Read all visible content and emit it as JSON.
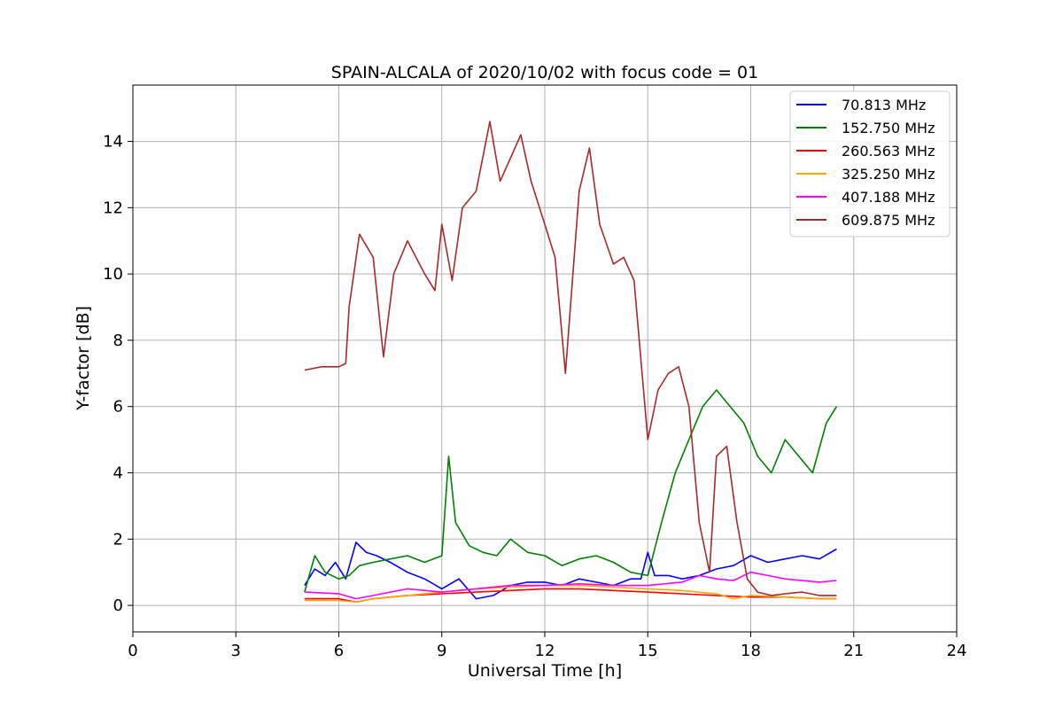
{
  "chart_data": {
    "type": "line",
    "title": "SPAIN-ALCALA of 2020/10/02 with focus code = 01",
    "xlabel": "Universal Time [h]",
    "ylabel": "Y-factor [dB]",
    "xlim": [
      0,
      24
    ],
    "ylim": [
      -0.8,
      15.7
    ],
    "xticks": [
      0,
      3,
      6,
      9,
      12,
      15,
      18,
      21,
      24
    ],
    "yticks": [
      0,
      2,
      4,
      6,
      8,
      10,
      12,
      14
    ],
    "grid": true,
    "legend_position": "top-right",
    "series": [
      {
        "name": " 70.813 MHz",
        "color": "#0000ff",
        "x": [
          5.0,
          5.3,
          5.6,
          5.9,
          6.2,
          6.5,
          6.8,
          7.1,
          7.5,
          8.0,
          8.5,
          9.0,
          9.5,
          10.0,
          10.5,
          11.0,
          11.5,
          12.0,
          12.5,
          13.0,
          13.5,
          14.0,
          14.5,
          14.8,
          15.0,
          15.2,
          15.6,
          16.0,
          16.5,
          17.0,
          17.5,
          18.0,
          18.5,
          19.0,
          19.5,
          20.0,
          20.5
        ],
        "y": [
          0.6,
          1.1,
          0.9,
          1.3,
          0.8,
          1.9,
          1.6,
          1.5,
          1.3,
          1.0,
          0.8,
          0.5,
          0.8,
          0.2,
          0.3,
          0.6,
          0.7,
          0.7,
          0.6,
          0.8,
          0.7,
          0.6,
          0.8,
          0.8,
          1.6,
          0.9,
          0.9,
          0.8,
          0.9,
          1.1,
          1.2,
          1.5,
          1.3,
          1.4,
          1.5,
          1.4,
          1.7
        ]
      },
      {
        "name": "152.750 MHz",
        "color": "#008000",
        "x": [
          5.0,
          5.3,
          5.6,
          6.0,
          6.3,
          6.6,
          7.0,
          7.5,
          8.0,
          8.5,
          9.0,
          9.2,
          9.4,
          9.8,
          10.2,
          10.6,
          11.0,
          11.5,
          12.0,
          12.5,
          13.0,
          13.5,
          14.0,
          14.5,
          15.0,
          15.4,
          15.8,
          16.2,
          16.6,
          17.0,
          17.4,
          17.8,
          18.2,
          18.6,
          19.0,
          19.4,
          19.8,
          20.2,
          20.5
        ],
        "y": [
          0.4,
          1.5,
          1.0,
          0.8,
          0.9,
          1.2,
          1.3,
          1.4,
          1.5,
          1.3,
          1.5,
          4.5,
          2.5,
          1.8,
          1.6,
          1.5,
          2.0,
          1.6,
          1.5,
          1.2,
          1.4,
          1.5,
          1.3,
          1.0,
          0.9,
          2.5,
          4.0,
          5.0,
          6.0,
          6.5,
          6.0,
          5.5,
          4.5,
          4.0,
          5.0,
          4.5,
          4.0,
          5.5,
          6.0
        ]
      },
      {
        "name": "260.563 MHz",
        "color": "#ff0000",
        "x": [
          5.0,
          6.0,
          6.5,
          7.0,
          8.0,
          9.0,
          10.0,
          11.0,
          12.0,
          13.0,
          14.0,
          15.0,
          16.0,
          17.0,
          18.0,
          19.0,
          20.0,
          20.5
        ],
        "y": [
          0.2,
          0.2,
          0.1,
          0.2,
          0.3,
          0.35,
          0.4,
          0.45,
          0.5,
          0.5,
          0.45,
          0.4,
          0.35,
          0.3,
          0.25,
          0.25,
          0.2,
          0.2
        ]
      },
      {
        "name": "325.250 MHz",
        "color": "#ffa500",
        "x": [
          5.0,
          6.0,
          6.5,
          7.0,
          8.0,
          9.0,
          10.0,
          11.0,
          12.0,
          13.0,
          14.0,
          15.0,
          16.0,
          17.0,
          17.5,
          18.0,
          19.0,
          20.0,
          20.5
        ],
        "y": [
          0.15,
          0.15,
          0.1,
          0.2,
          0.3,
          0.4,
          0.5,
          0.55,
          0.6,
          0.6,
          0.55,
          0.5,
          0.45,
          0.35,
          0.2,
          0.3,
          0.25,
          0.2,
          0.2
        ]
      },
      {
        "name": "407.188 MHz",
        "color": "#ff00ff",
        "x": [
          5.0,
          6.0,
          6.5,
          7.0,
          8.0,
          9.0,
          10.0,
          11.0,
          12.0,
          13.0,
          14.0,
          15.0,
          16.0,
          16.5,
          17.0,
          17.5,
          18.0,
          18.5,
          19.0,
          20.0,
          20.5
        ],
        "y": [
          0.4,
          0.35,
          0.2,
          0.3,
          0.5,
          0.4,
          0.5,
          0.6,
          0.6,
          0.65,
          0.6,
          0.6,
          0.7,
          0.9,
          0.8,
          0.75,
          1.0,
          0.9,
          0.8,
          0.7,
          0.75
        ]
      },
      {
        "name": "609.875 MHz",
        "color": "#a52a2a",
        "x": [
          5.0,
          5.5,
          6.0,
          6.2,
          6.3,
          6.6,
          7.0,
          7.3,
          7.6,
          8.0,
          8.5,
          8.8,
          9.0,
          9.3,
          9.6,
          10.0,
          10.4,
          10.7,
          11.0,
          11.3,
          11.6,
          12.0,
          12.3,
          12.6,
          13.0,
          13.3,
          13.6,
          14.0,
          14.3,
          14.6,
          15.0,
          15.3,
          15.6,
          15.9,
          16.2,
          16.5,
          16.8,
          17.0,
          17.3,
          17.6,
          17.9,
          18.2,
          18.6,
          19.0,
          19.5,
          20.0,
          20.5
        ],
        "y": [
          7.1,
          7.2,
          7.2,
          7.3,
          9.0,
          11.2,
          10.5,
          7.5,
          10.0,
          11.0,
          10.0,
          9.5,
          11.5,
          9.8,
          12.0,
          12.5,
          14.6,
          12.8,
          13.5,
          14.2,
          12.8,
          11.5,
          10.5,
          7.0,
          12.5,
          13.8,
          11.5,
          10.3,
          10.5,
          9.8,
          5.0,
          6.5,
          7.0,
          7.2,
          6.0,
          2.5,
          1.0,
          4.5,
          4.8,
          2.5,
          0.8,
          0.4,
          0.3,
          0.35,
          0.4,
          0.3,
          0.3
        ]
      }
    ]
  }
}
